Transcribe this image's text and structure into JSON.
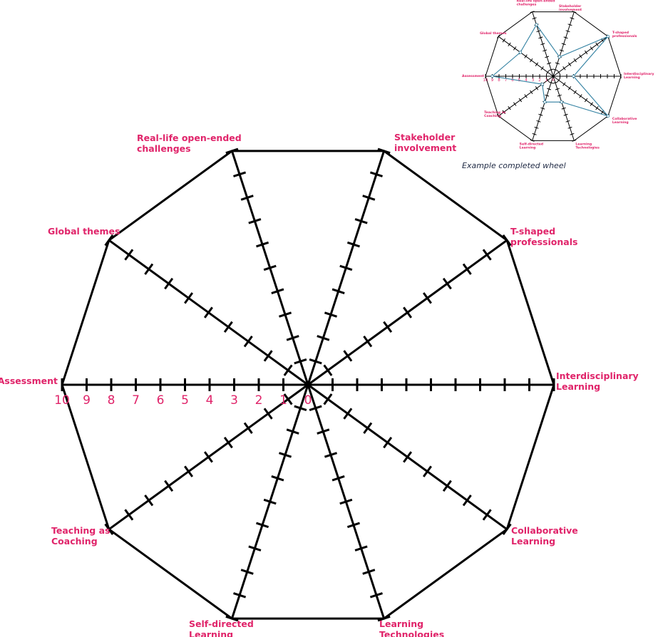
{
  "main_wheel": {
    "labels": [
      {
        "lines": [
          "Stakeholder",
          "involvement"
        ]
      },
      {
        "lines": [
          "T-shaped",
          "professionals"
        ]
      },
      {
        "lines": [
          "Interdisciplinary",
          "Learning"
        ]
      },
      {
        "lines": [
          "Collaborative",
          "Learning"
        ]
      },
      {
        "lines": [
          "Learning",
          "Technologies"
        ]
      },
      {
        "lines": [
          "Self-directed",
          "Learning"
        ]
      },
      {
        "lines": [
          "Teaching as",
          "Coaching"
        ]
      },
      {
        "lines": [
          "Assessment"
        ]
      },
      {
        "lines": [
          "Global themes"
        ]
      },
      {
        "lines": [
          "Real-life open-ended",
          "challenges"
        ]
      }
    ],
    "scale_numbers": [
      "0",
      "1",
      "2",
      "3",
      "4",
      "5",
      "6",
      "7",
      "8",
      "9",
      "10"
    ]
  },
  "example_wheel": {
    "caption": "Example completed wheel",
    "scores": [
      3,
      10,
      3,
      10,
      4,
      4,
      2,
      9,
      6,
      8
    ]
  },
  "colors": {
    "label": "#e0246a",
    "lines": "#000000",
    "example_line": "#2f7fa0",
    "caption": "#1f2a44"
  }
}
